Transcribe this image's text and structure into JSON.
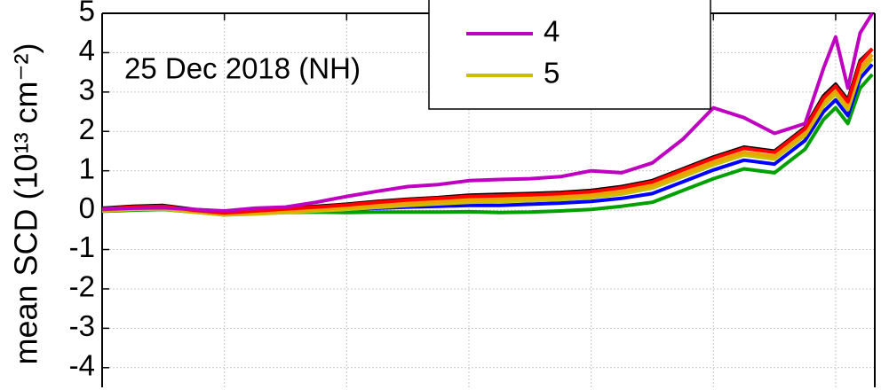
{
  "chart_data": {
    "type": "line",
    "y_label": "mean SCD (10¹³ cm⁻²)",
    "annotation": "25 Dec 2018 (NH)",
    "x": [
      0,
      0.25,
      0.5,
      0.75,
      1,
      1.25,
      1.5,
      1.75,
      2,
      2.25,
      2.5,
      2.75,
      3,
      3.25,
      3.5,
      3.75,
      4,
      4.25,
      4.5,
      4.75,
      5,
      5.25,
      5.5,
      5.75,
      5.9,
      6,
      6.1,
      6.2,
      6.3
    ],
    "xlim": [
      0,
      6.32
    ],
    "xticks": [
      0,
      1,
      2,
      3,
      4,
      5,
      6
    ],
    "ylim": [
      -4.5,
      5
    ],
    "yticks": [
      5,
      4,
      3,
      2,
      1,
      0,
      -1,
      -2,
      -3,
      -4
    ],
    "grid": true,
    "legend": "top-right",
    "series": [
      {
        "color": "#00a000",
        "values": [
          -0.03,
          0,
          0.02,
          -0.05,
          -0.12,
          -0.08,
          -0.06,
          -0.05,
          -0.06,
          -0.05,
          -0.05,
          -0.05,
          -0.04,
          -0.06,
          -0.05,
          -0.02,
          0.02,
          0.1,
          0.2,
          0.5,
          0.8,
          1.05,
          0.95,
          1.55,
          2.3,
          2.6,
          2.2,
          3.1,
          3.45
        ]
      },
      {
        "color": "#0000ff",
        "values": [
          0,
          0.03,
          0.05,
          -0.03,
          -0.08,
          -0.05,
          -0.02,
          0,
          0.02,
          0.05,
          0.08,
          0.1,
          0.12,
          0.12,
          0.15,
          0.18,
          0.22,
          0.3,
          0.42,
          0.72,
          1.02,
          1.27,
          1.17,
          1.77,
          2.5,
          2.8,
          2.4,
          3.35,
          3.7
        ]
      },
      {
        "name": "5",
        "color": "#c8c000",
        "values": [
          -0.02,
          0.02,
          0.03,
          -0.05,
          -0.12,
          -0.1,
          -0.06,
          -0.02,
          0.02,
          0.07,
          0.12,
          0.16,
          0.2,
          0.22,
          0.24,
          0.27,
          0.32,
          0.41,
          0.56,
          0.85,
          1.15,
          1.4,
          1.3,
          1.9,
          2.65,
          2.95,
          2.55,
          3.5,
          3.85
        ]
      },
      {
        "color": "#f0a000",
        "values": [
          0,
          0.05,
          0.06,
          -0.03,
          -0.1,
          -0.06,
          -0.02,
          0.02,
          0.07,
          0.13,
          0.18,
          0.22,
          0.27,
          0.29,
          0.31,
          0.34,
          0.39,
          0.48,
          0.63,
          0.92,
          1.22,
          1.47,
          1.37,
          1.97,
          2.75,
          3.05,
          2.65,
          3.6,
          3.95
        ]
      },
      {
        "color": "#000000",
        "values": [
          0.05,
          0.1,
          0.12,
          0.02,
          -0.05,
          0,
          0.05,
          0.1,
          0.15,
          0.22,
          0.28,
          0.32,
          0.38,
          0.4,
          0.42,
          0.45,
          0.5,
          0.6,
          0.75,
          1.05,
          1.35,
          1.6,
          1.5,
          2.1,
          2.9,
          3.2,
          2.8,
          3.8,
          4.1
        ]
      },
      {
        "color": "#ff0000",
        "values": [
          0.03,
          0.08,
          0.1,
          0,
          -0.07,
          -0.02,
          0.03,
          0.08,
          0.13,
          0.2,
          0.26,
          0.3,
          0.35,
          0.37,
          0.39,
          0.42,
          0.47,
          0.57,
          0.72,
          1.02,
          1.32,
          1.57,
          1.47,
          2.07,
          2.85,
          3.15,
          2.75,
          3.75,
          4.1
        ]
      },
      {
        "name": "4",
        "color": "#c000c0",
        "values": [
          0.02,
          0.05,
          0.06,
          0.02,
          -0.02,
          0.05,
          0.08,
          0.2,
          0.35,
          0.48,
          0.6,
          0.65,
          0.75,
          0.78,
          0.8,
          0.85,
          1.0,
          0.95,
          1.2,
          1.8,
          2.6,
          2.35,
          1.95,
          2.2,
          3.6,
          4.4,
          3.1,
          4.5,
          5.0
        ]
      }
    ]
  }
}
